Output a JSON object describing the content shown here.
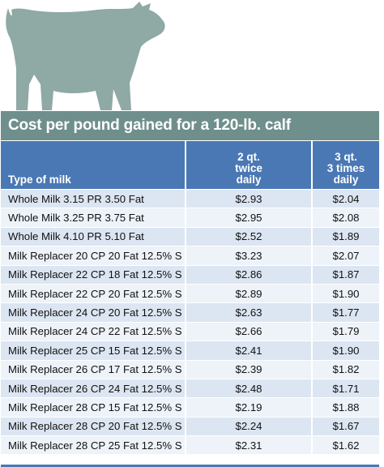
{
  "header": {
    "title": "Cost per pound gained for a 120-lb. calf"
  },
  "table": {
    "columns": [
      {
        "label_lines": [
          ""
        ]
      },
      {
        "label_lines": [
          "2 qt.",
          "twice",
          "daily"
        ]
      },
      {
        "label_lines": [
          "3 qt.",
          "3 times",
          "daily"
        ]
      }
    ],
    "first_header": "Type of milk",
    "rows": [
      [
        "Whole Milk 3.15 PR 3.50 Fat",
        "$2.93",
        "$2.04"
      ],
      [
        "Whole Milk 3.25 PR 3.75 Fat",
        "$2.95",
        "$2.08"
      ],
      [
        "Whole Milk 4.10 PR 5.10 Fat",
        "$2.52",
        "$1.89"
      ],
      [
        "Milk Replacer 20 CP 20 Fat 12.5% S",
        "$3.23",
        "$2.07"
      ],
      [
        "Milk Replacer 22 CP 18 Fat 12.5% S",
        "$2.86",
        "$1.87"
      ],
      [
        "Milk Replacer 22 CP 20 Fat 12.5% S",
        "$2.89",
        "$1.90"
      ],
      [
        "Milk Replacer 24 CP 20 Fat 12.5% S",
        "$2.63",
        "$1.77"
      ],
      [
        "Milk Replacer 24 CP 22 Fat 12.5% S",
        "$2.66",
        "$1.79"
      ],
      [
        "Milk Replacer 25 CP 15 Fat 12.5% S",
        "$2.41",
        "$1.90"
      ],
      [
        "Milk Replacer 26 CP 17 Fat 12.5% S",
        "$2.39",
        "$1.82"
      ],
      [
        "Milk Replacer 26 CP 24 Fat 12.5% S",
        "$2.48",
        "$1.71"
      ],
      [
        "Milk Replacer 28 CP 15 Fat 12.5% S",
        "$2.19",
        "$1.88"
      ],
      [
        "Milk Replacer 28 CP 20 Fat 12.5% S",
        "$2.24",
        "$1.67"
      ],
      [
        "Milk Replacer 28 CP 25 Fat 12.5% S",
        "$2.31",
        "$1.62"
      ]
    ]
  },
  "illustration": {
    "icon": "calf-silhouette-icon",
    "color": "#8fa9a5"
  },
  "colors": {
    "title_bar": "#6f8f8c",
    "header_row": "#4a78b4",
    "row_band": "#dce6f2",
    "row_alt": "#eef3f9"
  }
}
